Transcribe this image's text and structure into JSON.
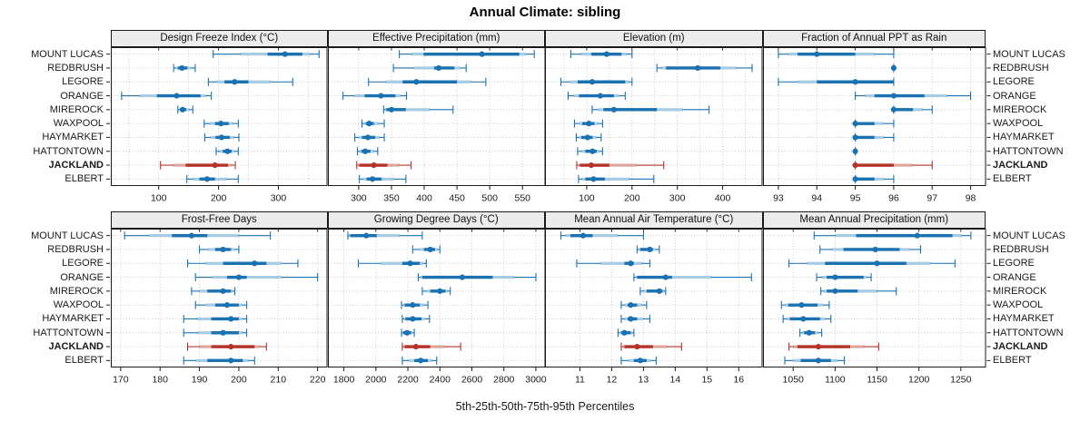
{
  "title": "Annual Climate: sibling",
  "caption": "5th-25th-50th-75th-95th Percentiles",
  "colors": {
    "series": "#1a72b2",
    "series_light": "#a6cbe5",
    "highlight": "#b53228",
    "highlight_light": "#dda49c",
    "grid": "#c4c4c4",
    "strip_bg": "#ececec",
    "border": "#1a1a1a",
    "tick": "#1a1a1a"
  },
  "chart_data": {
    "type": "dotplot-percentile-intervals",
    "percentile_labels": [
      "5th",
      "25th",
      "50th",
      "75th",
      "95th"
    ],
    "legend_note": "5th-25th-50th-75th-95th Percentiles",
    "rows": [
      "MOUNT LUCAS",
      "REDBRUSH",
      "LEGORE",
      "ORANGE",
      "MIREROCK",
      "WAXPOOL",
      "HAYMARKET",
      "HATTONTOWN",
      "JACKLAND",
      "ELBERT"
    ],
    "highlight_row": "JACKLAND",
    "panels": [
      {
        "title": "Design Freeze Index (°C)",
        "ticks": [
          100,
          200,
          300
        ],
        "grid_ticks": [
          50,
          100,
          150,
          200,
          250,
          300,
          350
        ],
        "xlim": [
          20,
          382
        ],
        "series": [
          [
            191,
            282,
            311,
            340,
            368
          ],
          [
            125,
            132,
            139,
            148,
            161
          ],
          [
            183,
            210,
            227,
            250,
            324
          ],
          [
            38,
            97,
            130,
            170,
            188
          ],
          [
            132,
            136,
            140,
            146,
            157
          ],
          [
            176,
            194,
            204,
            217,
            233
          ],
          [
            177,
            195,
            205,
            219,
            234
          ],
          [
            196,
            207,
            215,
            222,
            233
          ],
          [
            103,
            145,
            194,
            216,
            228
          ],
          [
            147,
            168,
            181,
            194,
            233
          ]
        ]
      },
      {
        "title": "Effective Precipitation (mm)",
        "ticks": [
          300,
          350,
          400,
          450,
          500,
          550
        ],
        "grid_ticks": [
          300,
          350,
          400,
          450,
          500,
          550
        ],
        "xlim": [
          253,
          585
        ],
        "series": [
          [
            362,
            399,
            488,
            545,
            568
          ],
          [
            353,
            415,
            422,
            446,
            464
          ],
          [
            315,
            367,
            388,
            450,
            494
          ],
          [
            276,
            309,
            334,
            356,
            373
          ],
          [
            338,
            342,
            350,
            372,
            444
          ],
          [
            305,
            311,
            316,
            323,
            339
          ],
          [
            294,
            305,
            314,
            325,
            339
          ],
          [
            298,
            304,
            310,
            318,
            329
          ],
          [
            297,
            301,
            323,
            344,
            380
          ],
          [
            301,
            312,
            321,
            335,
            372
          ]
        ]
      },
      {
        "title": "Elevation (m)",
        "ticks": [
          100,
          200,
          300,
          400
        ],
        "grid_ticks": [
          50,
          100,
          150,
          200,
          250,
          300,
          350,
          400,
          450
        ],
        "xlim": [
          8,
          488
        ],
        "series": [
          [
            65,
            110,
            144,
            177,
            200
          ],
          [
            255,
            275,
            345,
            395,
            465
          ],
          [
            43,
            80,
            112,
            185,
            200
          ],
          [
            59,
            83,
            130,
            160,
            185
          ],
          [
            112,
            137,
            160,
            255,
            370
          ],
          [
            73,
            90,
            105,
            117,
            135
          ],
          [
            77,
            88,
            102,
            113,
            132
          ],
          [
            80,
            97,
            113,
            122,
            135
          ],
          [
            78,
            85,
            110,
            150,
            270
          ],
          [
            82,
            97,
            115,
            140,
            248
          ]
        ]
      },
      {
        "title": "Fraction of Annual PPT as Rain",
        "ticks": [
          93,
          94,
          95,
          96,
          97,
          98
        ],
        "grid_ticks": [
          93,
          94,
          95,
          96,
          97,
          98
        ],
        "xlim": [
          92.6,
          98.4
        ],
        "series": [
          [
            93,
            93.5,
            94,
            95,
            96
          ],
          [
            96,
            96,
            96,
            96,
            96
          ],
          [
            93,
            94,
            95,
            96,
            96
          ],
          [
            95,
            95.5,
            96,
            96.8,
            98
          ],
          [
            96,
            96,
            96,
            96.5,
            97
          ],
          [
            95,
            95,
            95,
            95.5,
            96
          ],
          [
            95,
            95,
            95,
            95.5,
            96
          ],
          [
            95,
            95,
            95,
            95,
            95
          ],
          [
            95,
            95,
            95,
            96,
            97
          ],
          [
            95,
            95,
            95,
            95.5,
            96
          ]
        ]
      },
      {
        "title": "Frost-Free Days",
        "ticks": [
          170,
          180,
          190,
          200,
          210,
          220
        ],
        "grid_ticks": [
          170,
          180,
          190,
          200,
          210,
          220
        ],
        "xlim": [
          167.5,
          222.5
        ],
        "series": [
          [
            171,
            183,
            188,
            192,
            208
          ],
          [
            190,
            194,
            196,
            198,
            200
          ],
          [
            187,
            196,
            204,
            207,
            215
          ],
          [
            189,
            197,
            200,
            202,
            220
          ],
          [
            188,
            192,
            196,
            198,
            199
          ],
          [
            189,
            194,
            197,
            200,
            202
          ],
          [
            186,
            193,
            198,
            200,
            202
          ],
          [
            186,
            193,
            196,
            200,
            202
          ],
          [
            187,
            193,
            198,
            204,
            207
          ],
          [
            186,
            192,
            198,
            201,
            204
          ]
        ]
      },
      {
        "title": "Growing Degree Days (°C)",
        "ticks": [
          1800,
          2000,
          2200,
          2400,
          2600,
          2800,
          3000
        ],
        "grid_ticks": [
          1800,
          2000,
          2200,
          2400,
          2600,
          2800,
          3000
        ],
        "xlim": [
          1700,
          3060
        ],
        "series": [
          [
            1825,
            1840,
            1940,
            2005,
            2290
          ],
          [
            2230,
            2300,
            2340,
            2370,
            2400
          ],
          [
            1890,
            2165,
            2215,
            2275,
            2315
          ],
          [
            2265,
            2290,
            2540,
            2730,
            3000
          ],
          [
            2290,
            2340,
            2400,
            2435,
            2465
          ],
          [
            2160,
            2180,
            2230,
            2275,
            2325
          ],
          [
            2165,
            2185,
            2230,
            2285,
            2335
          ],
          [
            2160,
            2170,
            2195,
            2220,
            2240
          ],
          [
            2165,
            2180,
            2250,
            2340,
            2530
          ],
          [
            2165,
            2240,
            2280,
            2325,
            2380
          ]
        ]
      },
      {
        "title": "Mean Annual Air Temperature (°C)",
        "ticks": [
          11,
          12,
          13,
          14,
          15,
          16
        ],
        "grid_ticks": [
          11,
          12,
          13,
          14,
          15,
          16
        ],
        "xlim": [
          9.9,
          16.75
        ],
        "series": [
          [
            10.4,
            10.7,
            11.1,
            11.4,
            13.0
          ],
          [
            12.8,
            12.9,
            13.2,
            13.3,
            13.5
          ],
          [
            10.9,
            12.4,
            12.6,
            12.7,
            13.2
          ],
          [
            12.7,
            12.8,
            13.7,
            13.9,
            16.4
          ],
          [
            12.9,
            13.1,
            13.5,
            13.6,
            13.7
          ],
          [
            12.3,
            12.5,
            12.6,
            12.8,
            13.1
          ],
          [
            12.3,
            12.5,
            12.6,
            12.8,
            13.2
          ],
          [
            12.2,
            12.3,
            12.4,
            12.6,
            12.7
          ],
          [
            12.3,
            12.4,
            12.8,
            13.3,
            14.2
          ],
          [
            12.3,
            12.7,
            12.9,
            13.1,
            13.4
          ]
        ]
      },
      {
        "title": "Mean Annual Precipitation (mm)",
        "ticks": [
          1050,
          1100,
          1150,
          1200,
          1250
        ],
        "grid_ticks": [
          1050,
          1100,
          1150,
          1200,
          1250
        ],
        "xlim": [
          1014,
          1280
        ],
        "series": [
          [
            1075,
            1125,
            1198,
            1240,
            1262
          ],
          [
            1082,
            1110,
            1148,
            1177,
            1202
          ],
          [
            1045,
            1088,
            1150,
            1185,
            1243
          ],
          [
            1078,
            1090,
            1100,
            1134,
            1143
          ],
          [
            1083,
            1090,
            1100,
            1127,
            1173
          ],
          [
            1036,
            1044,
            1060,
            1079,
            1093
          ],
          [
            1038,
            1046,
            1062,
            1082,
            1095
          ],
          [
            1058,
            1063,
            1069,
            1076,
            1084
          ],
          [
            1045,
            1055,
            1080,
            1118,
            1152
          ],
          [
            1040,
            1059,
            1080,
            1095,
            1111
          ]
        ]
      }
    ]
  }
}
